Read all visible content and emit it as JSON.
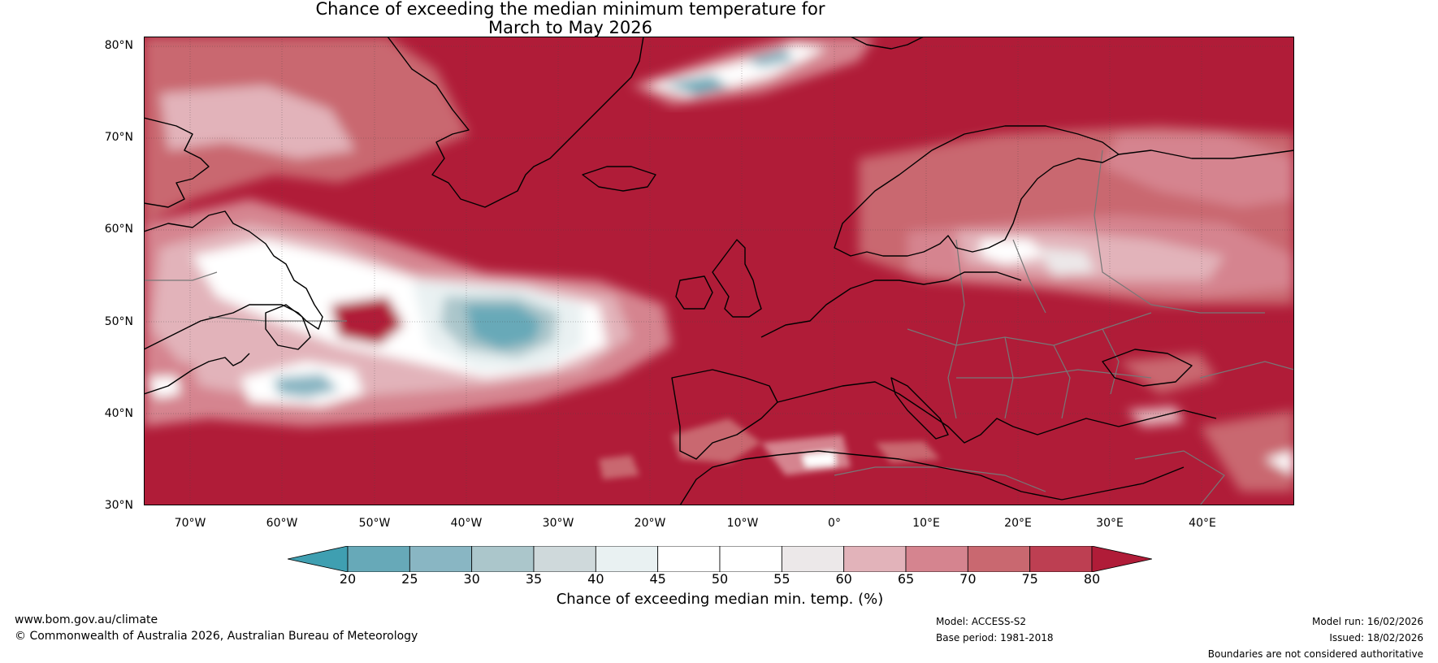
{
  "title_line1": "Chance of exceeding the median minimum temperature for",
  "title_line2": "March to May 2026",
  "lat_labels": [
    "80°N",
    "70°N",
    "60°N",
    "50°N",
    "40°N",
    "30°N"
  ],
  "lon_labels": [
    "70°W",
    "60°W",
    "50°W",
    "40°W",
    "30°W",
    "20°W",
    "10°W",
    "0°",
    "10°E",
    "20°E",
    "30°E",
    "40°E"
  ],
  "colorbar": {
    "ticks": [
      "20",
      "25",
      "30",
      "35",
      "40",
      "45",
      "50",
      "55",
      "60",
      "65",
      "70",
      "75",
      "80"
    ],
    "colors": [
      "#3f9fb1",
      "#67a9b8",
      "#89b6c3",
      "#abc6cb",
      "#cfd9db",
      "#e9f1f2",
      "#ffffff",
      "#ffffff",
      "#ece8e9",
      "#e2b3ba",
      "#d5848f",
      "#c96870",
      "#bd3f52",
      "#b01c38"
    ],
    "label": "Chance of exceeding median min. temp. (%)"
  },
  "footer": {
    "website": "www.bom.gov.au/climate",
    "copyright": "© Commonwealth of Australia 2026, Australian Bureau of Meteorology",
    "model": "Model: ACCESS-S2",
    "base_period": "Base period: 1981-2018",
    "model_run": "Model run: 16/02/2026",
    "issued": "Issued: 18/02/2026",
    "boundaries": "Boundaries are not considered authoritative"
  }
}
